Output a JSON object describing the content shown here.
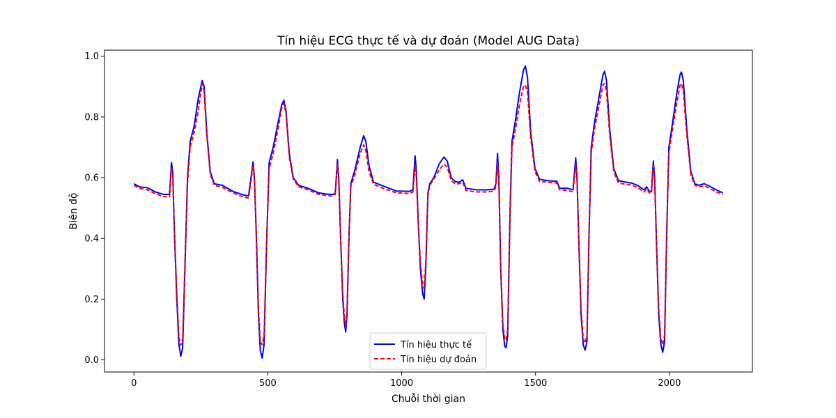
{
  "chart_data": {
    "type": "line",
    "title": "Tín hiệu ECG thực tế và dự đoán (Model AUG Data)",
    "xlabel": "Chuỗi thời gian",
    "ylabel": "Biên độ",
    "xlim": [
      -110,
      2310
    ],
    "ylim": [
      -0.04,
      1.02
    ],
    "xticks": [
      0,
      500,
      1000,
      1500,
      2000
    ],
    "xtick_labels": [
      "0",
      "500",
      "1000",
      "1500",
      "2000"
    ],
    "yticks": [
      0.0,
      0.2,
      0.4,
      0.6,
      0.8,
      1.0
    ],
    "ytick_labels": [
      "0.0",
      "0.2",
      "0.4",
      "0.6",
      "0.8",
      "1.0"
    ],
    "grid": false,
    "legend_position": "lower-center",
    "series": [
      {
        "name": "Tín hiệu thực tế",
        "color": "#0000ff",
        "style": "solid",
        "points": [
          [
            0,
            0.58
          ],
          [
            20,
            0.57
          ],
          [
            50,
            0.567
          ],
          [
            80,
            0.553
          ],
          [
            110,
            0.545
          ],
          [
            125,
            0.545
          ],
          [
            133,
            0.545
          ],
          [
            140,
            0.65
          ],
          [
            145,
            0.62
          ],
          [
            150,
            0.45
          ],
          [
            160,
            0.2
          ],
          [
            168,
            0.05
          ],
          [
            175,
            0.012
          ],
          [
            182,
            0.04
          ],
          [
            192,
            0.35
          ],
          [
            200,
            0.6
          ],
          [
            210,
            0.72
          ],
          [
            225,
            0.77
          ],
          [
            240,
            0.86
          ],
          [
            255,
            0.92
          ],
          [
            262,
            0.9
          ],
          [
            272,
            0.75
          ],
          [
            285,
            0.62
          ],
          [
            300,
            0.58
          ],
          [
            330,
            0.575
          ],
          [
            370,
            0.555
          ],
          [
            410,
            0.543
          ],
          [
            428,
            0.54
          ],
          [
            445,
            0.652
          ],
          [
            450,
            0.6
          ],
          [
            458,
            0.38
          ],
          [
            465,
            0.15
          ],
          [
            472,
            0.03
          ],
          [
            479,
            0.006
          ],
          [
            486,
            0.05
          ],
          [
            496,
            0.4
          ],
          [
            505,
            0.65
          ],
          [
            520,
            0.7
          ],
          [
            538,
            0.78
          ],
          [
            552,
            0.84
          ],
          [
            560,
            0.855
          ],
          [
            568,
            0.82
          ],
          [
            580,
            0.68
          ],
          [
            595,
            0.6
          ],
          [
            615,
            0.575
          ],
          [
            650,
            0.565
          ],
          [
            690,
            0.55
          ],
          [
            730,
            0.545
          ],
          [
            745,
            0.545
          ],
          [
            752,
            0.55
          ],
          [
            760,
            0.66
          ],
          [
            765,
            0.6
          ],
          [
            772,
            0.4
          ],
          [
            780,
            0.2
          ],
          [
            786,
            0.12
          ],
          [
            791,
            0.092
          ],
          [
            796,
            0.15
          ],
          [
            803,
            0.4
          ],
          [
            810,
            0.58
          ],
          [
            825,
            0.625
          ],
          [
            845,
            0.7
          ],
          [
            858,
            0.738
          ],
          [
            866,
            0.72
          ],
          [
            878,
            0.64
          ],
          [
            895,
            0.585
          ],
          [
            930,
            0.573
          ],
          [
            980,
            0.556
          ],
          [
            1030,
            0.555
          ],
          [
            1042,
            0.56
          ],
          [
            1050,
            0.672
          ],
          [
            1055,
            0.62
          ],
          [
            1062,
            0.45
          ],
          [
            1070,
            0.3
          ],
          [
            1078,
            0.22
          ],
          [
            1084,
            0.2
          ],
          [
            1090,
            0.3
          ],
          [
            1098,
            0.55
          ],
          [
            1105,
            0.58
          ],
          [
            1120,
            0.6
          ],
          [
            1140,
            0.645
          ],
          [
            1158,
            0.668
          ],
          [
            1170,
            0.655
          ],
          [
            1185,
            0.6
          ],
          [
            1200,
            0.587
          ],
          [
            1215,
            0.585
          ],
          [
            1228,
            0.593
          ],
          [
            1240,
            0.565
          ],
          [
            1280,
            0.56
          ],
          [
            1320,
            0.56
          ],
          [
            1345,
            0.562
          ],
          [
            1352,
            0.58
          ],
          [
            1358,
            0.68
          ],
          [
            1363,
            0.6
          ],
          [
            1370,
            0.3
          ],
          [
            1378,
            0.1
          ],
          [
            1385,
            0.045
          ],
          [
            1390,
            0.04
          ],
          [
            1396,
            0.08
          ],
          [
            1405,
            0.5
          ],
          [
            1412,
            0.72
          ],
          [
            1425,
            0.79
          ],
          [
            1440,
            0.88
          ],
          [
            1455,
            0.955
          ],
          [
            1462,
            0.968
          ],
          [
            1470,
            0.93
          ],
          [
            1482,
            0.75
          ],
          [
            1498,
            0.63
          ],
          [
            1515,
            0.595
          ],
          [
            1545,
            0.59
          ],
          [
            1580,
            0.588
          ],
          [
            1590,
            0.565
          ],
          [
            1620,
            0.565
          ],
          [
            1640,
            0.56
          ],
          [
            1650,
            0.665
          ],
          [
            1655,
            0.6
          ],
          [
            1662,
            0.38
          ],
          [
            1670,
            0.15
          ],
          [
            1678,
            0.05
          ],
          [
            1685,
            0.032
          ],
          [
            1692,
            0.06
          ],
          [
            1700,
            0.42
          ],
          [
            1708,
            0.7
          ],
          [
            1720,
            0.78
          ],
          [
            1740,
            0.88
          ],
          [
            1752,
            0.94
          ],
          [
            1758,
            0.95
          ],
          [
            1765,
            0.92
          ],
          [
            1777,
            0.76
          ],
          [
            1792,
            0.63
          ],
          [
            1810,
            0.59
          ],
          [
            1840,
            0.585
          ],
          [
            1860,
            0.582
          ],
          [
            1880,
            0.575
          ],
          [
            1905,
            0.56
          ],
          [
            1915,
            0.57
          ],
          [
            1925,
            0.555
          ],
          [
            1933,
            0.556
          ],
          [
            1940,
            0.655
          ],
          [
            1945,
            0.6
          ],
          [
            1952,
            0.38
          ],
          [
            1960,
            0.15
          ],
          [
            1968,
            0.05
          ],
          [
            1975,
            0.025
          ],
          [
            1982,
            0.06
          ],
          [
            1990,
            0.42
          ],
          [
            1998,
            0.7
          ],
          [
            2010,
            0.77
          ],
          [
            2028,
            0.88
          ],
          [
            2040,
            0.94
          ],
          [
            2045,
            0.948
          ],
          [
            2052,
            0.92
          ],
          [
            2065,
            0.76
          ],
          [
            2080,
            0.62
          ],
          [
            2095,
            0.58
          ],
          [
            2110,
            0.575
          ],
          [
            2130,
            0.58
          ],
          [
            2150,
            0.572
          ],
          [
            2175,
            0.56
          ],
          [
            2200,
            0.55
          ]
        ]
      },
      {
        "name": "Tín hiệu dự đoán",
        "color": "#ff0000",
        "style": "dashed",
        "points": [
          [
            0,
            0.575
          ],
          [
            20,
            0.565
          ],
          [
            50,
            0.56
          ],
          [
            80,
            0.547
          ],
          [
            110,
            0.538
          ],
          [
            125,
            0.537
          ],
          [
            133,
            0.537
          ],
          [
            140,
            0.635
          ],
          [
            145,
            0.6
          ],
          [
            150,
            0.45
          ],
          [
            160,
            0.22
          ],
          [
            168,
            0.075
          ],
          [
            175,
            0.048
          ],
          [
            182,
            0.07
          ],
          [
            192,
            0.36
          ],
          [
            200,
            0.58
          ],
          [
            210,
            0.7
          ],
          [
            225,
            0.75
          ],
          [
            240,
            0.82
          ],
          [
            255,
            0.91
          ],
          [
            262,
            0.885
          ],
          [
            272,
            0.74
          ],
          [
            285,
            0.61
          ],
          [
            300,
            0.575
          ],
          [
            330,
            0.568
          ],
          [
            370,
            0.55
          ],
          [
            410,
            0.536
          ],
          [
            428,
            0.533
          ],
          [
            445,
            0.64
          ],
          [
            450,
            0.59
          ],
          [
            458,
            0.4
          ],
          [
            465,
            0.17
          ],
          [
            472,
            0.06
          ],
          [
            479,
            0.05
          ],
          [
            486,
            0.08
          ],
          [
            496,
            0.4
          ],
          [
            505,
            0.63
          ],
          [
            520,
            0.68
          ],
          [
            538,
            0.76
          ],
          [
            552,
            0.83
          ],
          [
            560,
            0.845
          ],
          [
            568,
            0.81
          ],
          [
            580,
            0.67
          ],
          [
            595,
            0.595
          ],
          [
            615,
            0.57
          ],
          [
            650,
            0.56
          ],
          [
            690,
            0.545
          ],
          [
            730,
            0.54
          ],
          [
            745,
            0.54
          ],
          [
            752,
            0.545
          ],
          [
            760,
            0.645
          ],
          [
            765,
            0.59
          ],
          [
            772,
            0.4
          ],
          [
            780,
            0.22
          ],
          [
            786,
            0.14
          ],
          [
            791,
            0.11
          ],
          [
            796,
            0.17
          ],
          [
            803,
            0.4
          ],
          [
            810,
            0.57
          ],
          [
            825,
            0.61
          ],
          [
            845,
            0.68
          ],
          [
            858,
            0.708
          ],
          [
            866,
            0.69
          ],
          [
            878,
            0.62
          ],
          [
            895,
            0.578
          ],
          [
            930,
            0.565
          ],
          [
            980,
            0.55
          ],
          [
            1030,
            0.548
          ],
          [
            1042,
            0.553
          ],
          [
            1050,
            0.64
          ],
          [
            1055,
            0.6
          ],
          [
            1062,
            0.45
          ],
          [
            1070,
            0.32
          ],
          [
            1078,
            0.25
          ],
          [
            1084,
            0.235
          ],
          [
            1090,
            0.32
          ],
          [
            1098,
            0.54
          ],
          [
            1105,
            0.575
          ],
          [
            1120,
            0.595
          ],
          [
            1140,
            0.625
          ],
          [
            1158,
            0.645
          ],
          [
            1170,
            0.635
          ],
          [
            1185,
            0.59
          ],
          [
            1200,
            0.58
          ],
          [
            1215,
            0.58
          ],
          [
            1228,
            0.585
          ],
          [
            1240,
            0.558
          ],
          [
            1280,
            0.553
          ],
          [
            1320,
            0.553
          ],
          [
            1345,
            0.556
          ],
          [
            1352,
            0.57
          ],
          [
            1358,
            0.65
          ],
          [
            1363,
            0.58
          ],
          [
            1370,
            0.3
          ],
          [
            1378,
            0.12
          ],
          [
            1385,
            0.07
          ],
          [
            1390,
            0.065
          ],
          [
            1396,
            0.1
          ],
          [
            1405,
            0.48
          ],
          [
            1412,
            0.7
          ],
          [
            1425,
            0.76
          ],
          [
            1440,
            0.84
          ],
          [
            1455,
            0.9
          ],
          [
            1462,
            0.905
          ],
          [
            1470,
            0.88
          ],
          [
            1482,
            0.73
          ],
          [
            1498,
            0.62
          ],
          [
            1515,
            0.588
          ],
          [
            1545,
            0.585
          ],
          [
            1580,
            0.582
          ],
          [
            1590,
            0.56
          ],
          [
            1620,
            0.558
          ],
          [
            1640,
            0.553
          ],
          [
            1650,
            0.645
          ],
          [
            1655,
            0.59
          ],
          [
            1662,
            0.38
          ],
          [
            1670,
            0.17
          ],
          [
            1678,
            0.07
          ],
          [
            1685,
            0.055
          ],
          [
            1692,
            0.08
          ],
          [
            1700,
            0.42
          ],
          [
            1708,
            0.68
          ],
          [
            1720,
            0.76
          ],
          [
            1740,
            0.85
          ],
          [
            1752,
            0.905
          ],
          [
            1758,
            0.91
          ],
          [
            1765,
            0.885
          ],
          [
            1777,
            0.74
          ],
          [
            1792,
            0.62
          ],
          [
            1810,
            0.582
          ],
          [
            1840,
            0.578
          ],
          [
            1860,
            0.575
          ],
          [
            1880,
            0.568
          ],
          [
            1905,
            0.553
          ],
          [
            1915,
            0.563
          ],
          [
            1925,
            0.55
          ],
          [
            1933,
            0.548
          ],
          [
            1940,
            0.64
          ],
          [
            1945,
            0.59
          ],
          [
            1952,
            0.38
          ],
          [
            1960,
            0.17
          ],
          [
            1968,
            0.07
          ],
          [
            1975,
            0.05
          ],
          [
            1982,
            0.08
          ],
          [
            1990,
            0.42
          ],
          [
            1998,
            0.68
          ],
          [
            2010,
            0.75
          ],
          [
            2028,
            0.85
          ],
          [
            2040,
            0.905
          ],
          [
            2045,
            0.91
          ],
          [
            2052,
            0.885
          ],
          [
            2065,
            0.74
          ],
          [
            2080,
            0.61
          ],
          [
            2095,
            0.575
          ],
          [
            2110,
            0.57
          ],
          [
            2130,
            0.573
          ],
          [
            2150,
            0.565
          ],
          [
            2175,
            0.553
          ],
          [
            2200,
            0.545
          ]
        ]
      }
    ]
  }
}
